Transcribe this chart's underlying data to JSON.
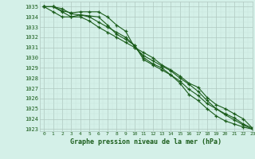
{
  "title": "Graphe pression niveau de la mer (hPa)",
  "bg_color": "#d4f0e8",
  "grid_color_major": "#b0c8c0",
  "grid_color_minor": "#c8e4dc",
  "line_color": "#1a5c1a",
  "xlim": [
    -0.5,
    23
  ],
  "ylim": [
    1022.8,
    1035.5
  ],
  "xticks": [
    0,
    1,
    2,
    3,
    4,
    5,
    6,
    7,
    8,
    9,
    10,
    11,
    12,
    13,
    14,
    15,
    16,
    17,
    18,
    19,
    20,
    21,
    22,
    23
  ],
  "yticks": [
    1023,
    1024,
    1025,
    1026,
    1027,
    1028,
    1029,
    1030,
    1031,
    1032,
    1033,
    1034,
    1035
  ],
  "series": [
    [
      1035.0,
      1035.0,
      1034.6,
      1034.4,
      1034.5,
      1034.5,
      1034.5,
      1034.0,
      1033.2,
      1032.6,
      1031.0,
      1030.5,
      1030.0,
      1029.3,
      1028.8,
      1028.2,
      1027.5,
      1027.1,
      1026.1,
      1025.4,
      1025.0,
      1024.5,
      1024.0,
      1023.1
    ],
    [
      1035.0,
      1035.0,
      1034.8,
      1034.3,
      1034.2,
      1034.0,
      1033.5,
      1033.0,
      1032.5,
      1032.0,
      1031.2,
      1030.0,
      1029.4,
      1029.0,
      1028.3,
      1027.7,
      1026.9,
      1026.3,
      1025.5,
      1025.0,
      1024.5,
      1024.1,
      1023.5,
      1023.1
    ],
    [
      1035.0,
      1035.0,
      1034.5,
      1034.0,
      1034.0,
      1033.6,
      1033.0,
      1032.5,
      1032.0,
      1031.5,
      1031.0,
      1030.2,
      1029.7,
      1029.2,
      1028.7,
      1028.0,
      1027.4,
      1026.7,
      1025.8,
      1025.0,
      1024.4,
      1023.9,
      1023.4,
      1023.0
    ],
    [
      1035.0,
      1034.5,
      1034.0,
      1034.0,
      1034.2,
      1034.1,
      1034.0,
      1033.2,
      1032.3,
      1031.8,
      1031.2,
      1029.8,
      1029.3,
      1028.8,
      1028.3,
      1027.5,
      1026.4,
      1025.8,
      1025.0,
      1024.3,
      1023.8,
      1023.5,
      1023.2,
      1023.0
    ]
  ]
}
